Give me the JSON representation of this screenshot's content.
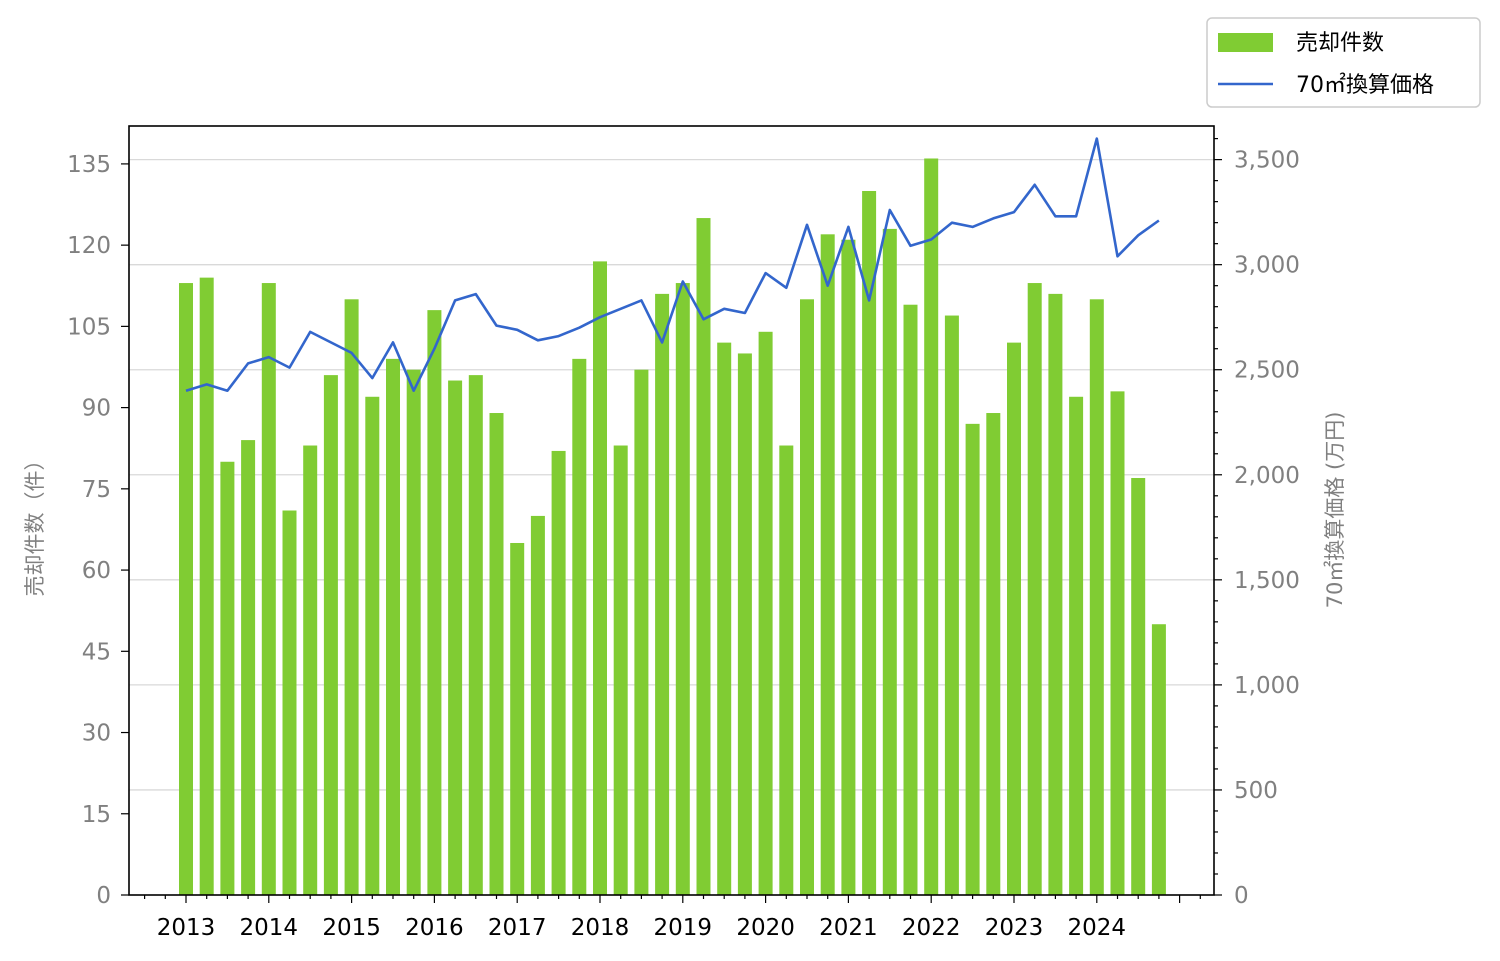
{
  "chart_data": {
    "type": "bar",
    "x_tick_labels": [
      "2013",
      "2014",
      "2015",
      "2016",
      "2017",
      "2018",
      "2019",
      "2020",
      "2021",
      "2022",
      "2023",
      "2024"
    ],
    "left_axis": {
      "label": "売却件数（件）",
      "range": [
        0,
        142
      ],
      "ticks": [
        "0",
        "15",
        "30",
        "45",
        "60",
        "75",
        "90",
        "105",
        "120",
        "135"
      ]
    },
    "right_axis": {
      "label": "70㎡換算価格 (万円)",
      "range": [
        0,
        3660
      ],
      "ticks": [
        "0",
        "500",
        "1,000",
        "1,500",
        "2,000",
        "2,500",
        "3,000",
        "3,500"
      ]
    },
    "grid": "horizontal (right axis)",
    "legend": {
      "position": "top-right, outside plot"
    },
    "series": [
      {
        "name": "売却件数",
        "type": "bar",
        "axis": "left",
        "color": "#80cc33",
        "values": [
          113,
          114,
          80,
          84,
          113,
          71,
          83,
          96,
          110,
          92,
          99,
          97,
          108,
          95,
          96,
          89,
          65,
          70,
          82,
          99,
          117,
          83,
          97,
          111,
          113,
          125,
          102,
          100,
          104,
          83,
          110,
          122,
          121,
          130,
          123,
          109,
          136,
          107,
          87,
          89,
          102,
          113,
          111,
          92,
          110,
          93,
          77,
          50
        ]
      },
      {
        "name": "70㎡換算価格",
        "type": "line",
        "axis": "right",
        "color": "#3366cc",
        "values": [
          2400,
          2430,
          2400,
          2530,
          2560,
          2510,
          2680,
          2630,
          2580,
          2460,
          2630,
          2400,
          2600,
          2830,
          2860,
          2710,
          2690,
          2640,
          2660,
          2700,
          2750,
          2790,
          2830,
          2630,
          2920,
          2740,
          2790,
          2770,
          2960,
          2890,
          3190,
          2900,
          3180,
          2830,
          3260,
          3090,
          3120,
          3200,
          3180,
          3220,
          3250,
          3380,
          3230,
          3230,
          3600,
          3040,
          3140,
          3210
        ]
      }
    ]
  }
}
